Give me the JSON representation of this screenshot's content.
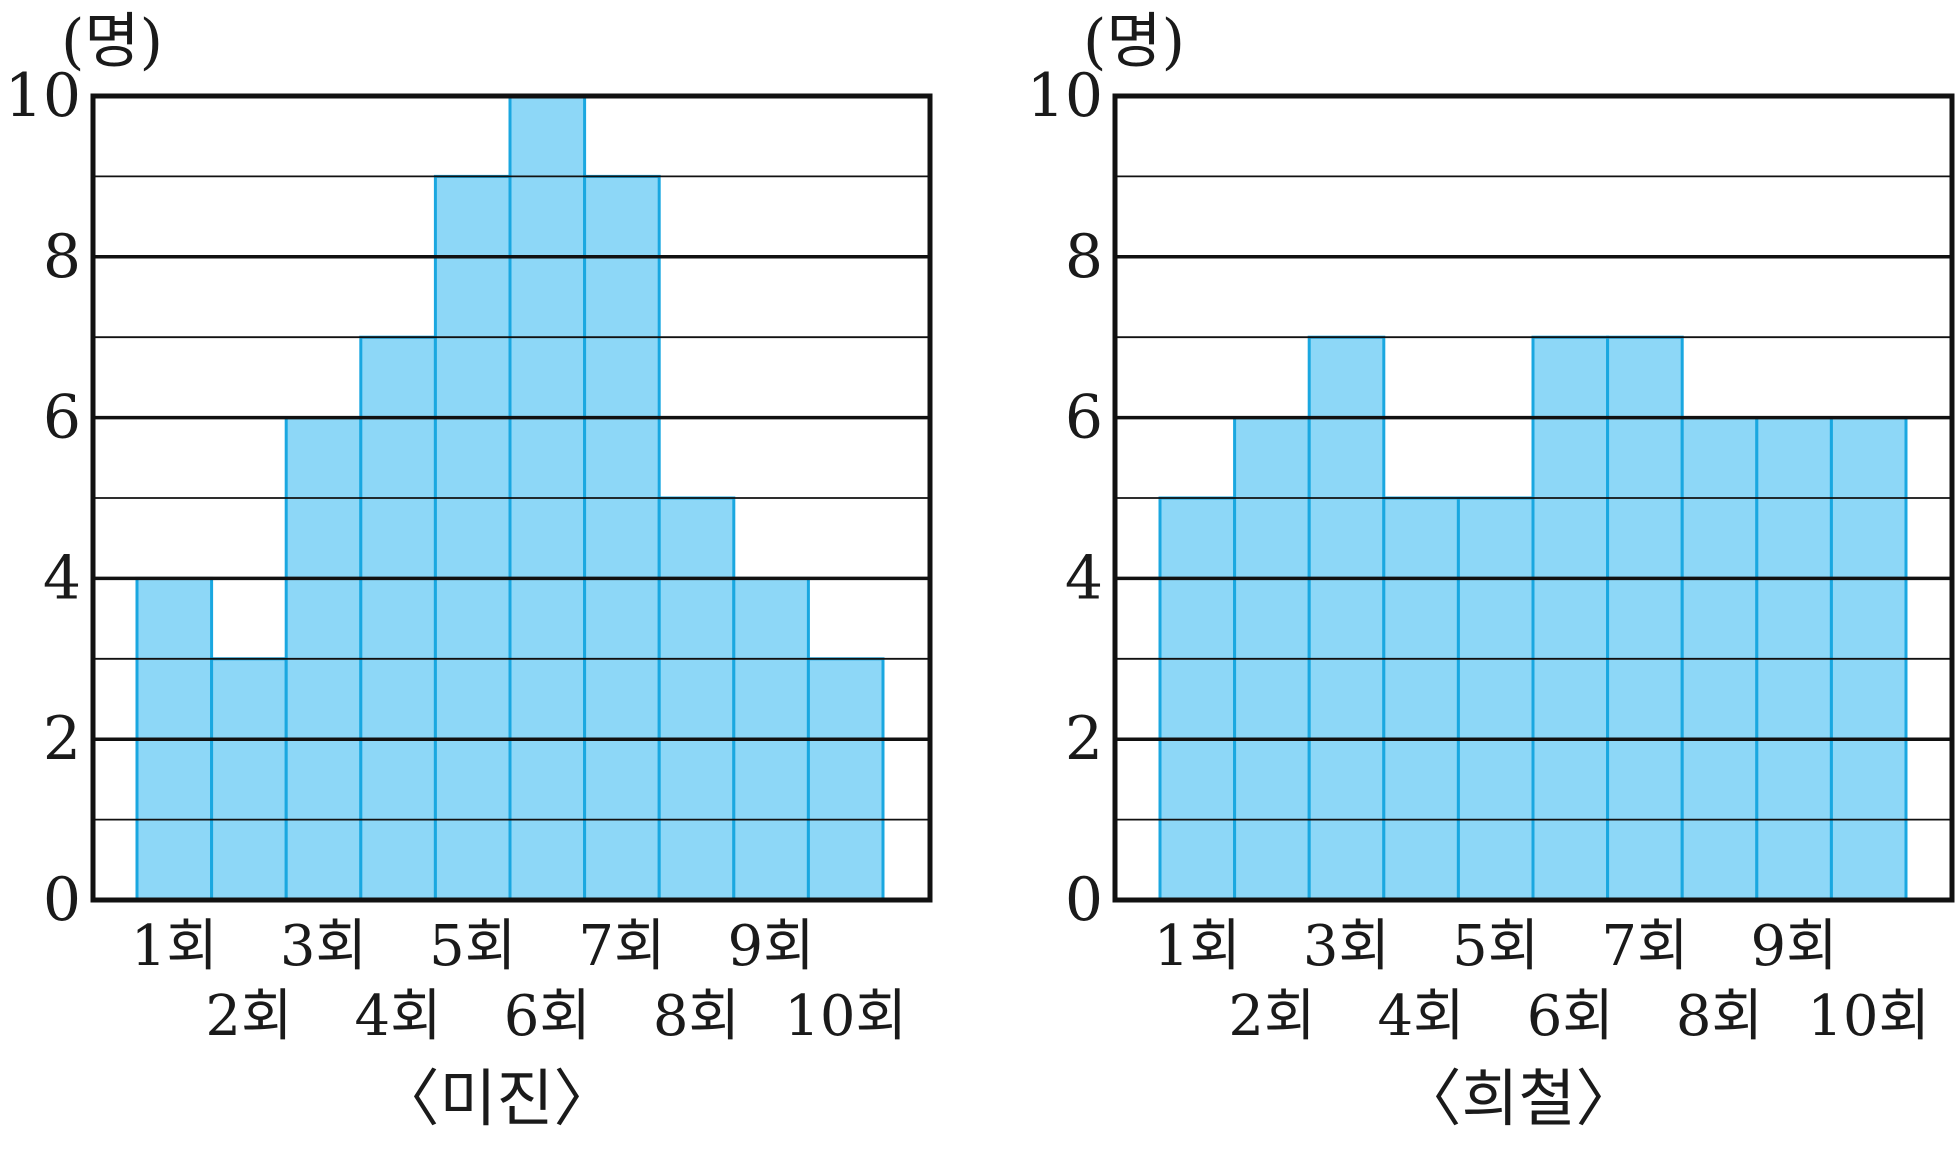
{
  "chart_data": [
    {
      "type": "bar",
      "title": "〈미진〉",
      "ylabel": "(명)",
      "ylim": [
        0,
        10
      ],
      "yticks": [
        0,
        2,
        4,
        6,
        8,
        10
      ],
      "minor_grid_step": 1,
      "grid": true,
      "categories": [
        "1회",
        "2회",
        "3회",
        "4회",
        "5회",
        "6회",
        "7회",
        "8회",
        "9회",
        "10회"
      ],
      "values": [
        4,
        3,
        6,
        7,
        9,
        10,
        9,
        5,
        4,
        3
      ],
      "bar_color": "#8dd7f7",
      "bar_edge_color": "#1aa7e0"
    },
    {
      "type": "bar",
      "title": "〈희철〉",
      "ylabel": "(명)",
      "ylim": [
        0,
        10
      ],
      "yticks": [
        0,
        2,
        4,
        6,
        8,
        10
      ],
      "minor_grid_step": 1,
      "grid": true,
      "categories": [
        "1회",
        "2회",
        "3회",
        "4회",
        "5회",
        "6회",
        "7회",
        "8회",
        "9회",
        "10회"
      ],
      "values": [
        5,
        6,
        7,
        5,
        5,
        7,
        7,
        6,
        6,
        6
      ],
      "bar_color": "#8dd7f7",
      "bar_edge_color": "#1aa7e0"
    }
  ]
}
